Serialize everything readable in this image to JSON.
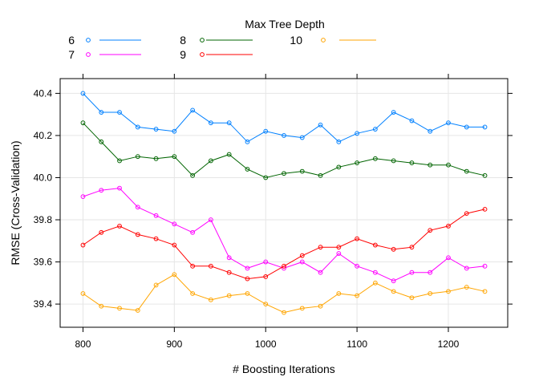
{
  "chart_data": {
    "type": "line",
    "xlabel": "# Boosting Iterations",
    "ylabel": "RMSE (Cross-Validation)",
    "legend_title": "Max Tree Depth",
    "legend_position": "top",
    "grid": true,
    "xlim": [
      775,
      1265
    ],
    "ylim": [
      39.29,
      40.47
    ],
    "x_ticks": [
      800,
      900,
      1000,
      1100,
      1200
    ],
    "y_ticks": [
      39.4,
      39.6,
      39.8,
      40.0,
      40.2,
      40.4
    ],
    "x_tick_labels": [
      "800",
      "900",
      "1000",
      "1100",
      "1200"
    ],
    "y_tick_labels": [
      "39.4",
      "39.6",
      "39.8",
      "40.0",
      "40.2",
      "40.4"
    ],
    "x": [
      800,
      820,
      840,
      860,
      880,
      900,
      920,
      940,
      960,
      980,
      1000,
      1020,
      1040,
      1060,
      1080,
      1100,
      1120,
      1140,
      1160,
      1180,
      1200,
      1220,
      1240
    ],
    "series": [
      {
        "name": "6",
        "color": "#0080ff",
        "values": [
          40.4,
          40.31,
          40.31,
          40.24,
          40.23,
          40.22,
          40.32,
          40.26,
          40.26,
          40.17,
          40.22,
          40.2,
          40.19,
          40.25,
          40.17,
          40.21,
          40.23,
          40.31,
          40.27,
          40.22,
          40.26,
          40.24,
          40.24
        ]
      },
      {
        "name": "7",
        "color": "#ff00ff",
        "values": [
          39.91,
          39.94,
          39.95,
          39.86,
          39.82,
          39.78,
          39.74,
          39.8,
          39.62,
          39.57,
          39.6,
          39.57,
          39.6,
          39.55,
          39.64,
          39.58,
          39.55,
          39.51,
          39.55,
          39.55,
          39.62,
          39.57,
          39.58
        ]
      },
      {
        "name": "8",
        "color": "#006400",
        "values": [
          40.26,
          40.17,
          40.08,
          40.1,
          40.09,
          40.1,
          40.01,
          40.08,
          40.11,
          40.04,
          40.0,
          40.02,
          40.03,
          40.01,
          40.05,
          40.07,
          40.09,
          40.08,
          40.07,
          40.06,
          40.06,
          40.03,
          40.01
        ]
      },
      {
        "name": "9",
        "color": "#ff0000",
        "values": [
          39.68,
          39.74,
          39.77,
          39.73,
          39.71,
          39.68,
          39.58,
          39.58,
          39.55,
          39.52,
          39.53,
          39.58,
          39.63,
          39.67,
          39.67,
          39.71,
          39.68,
          39.66,
          39.67,
          39.75,
          39.77,
          39.83,
          39.85
        ]
      },
      {
        "name": "10",
        "color": "#ffa500",
        "values": [
          39.45,
          39.39,
          39.38,
          39.37,
          39.49,
          39.54,
          39.45,
          39.42,
          39.44,
          39.45,
          39.4,
          39.36,
          39.38,
          39.39,
          39.45,
          39.44,
          39.5,
          39.46,
          39.43,
          39.45,
          39.46,
          39.48,
          39.46
        ]
      }
    ]
  }
}
